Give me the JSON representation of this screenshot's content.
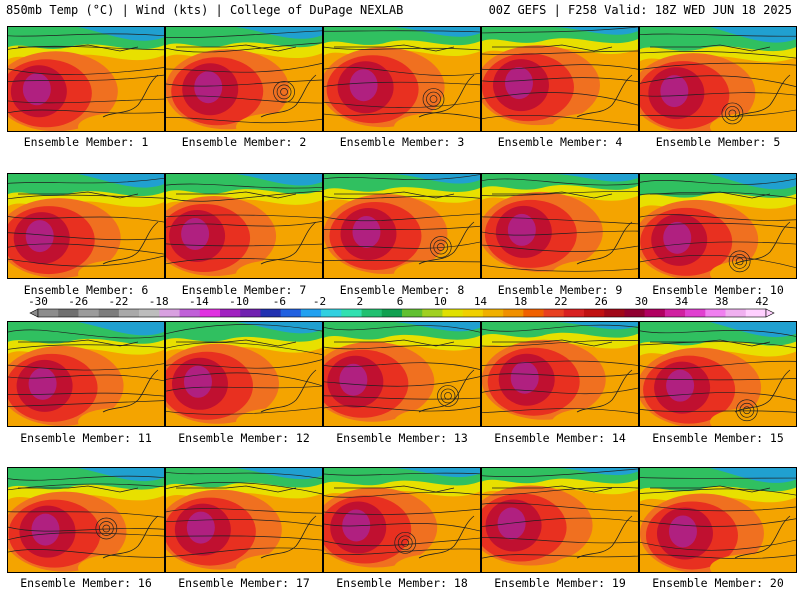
{
  "header": {
    "left": "850mb Temp (°C) | Wind (kts) | College of DuPage NEXLAB",
    "right": "00Z GEFS | F258 Valid: 18Z WED JUN 18 2025"
  },
  "member_caption_prefix": "Ensemble Member:",
  "members": [
    1,
    2,
    3,
    4,
    5,
    6,
    7,
    8,
    9,
    10,
    11,
    12,
    13,
    14,
    15,
    16,
    17,
    18,
    19,
    20
  ],
  "colorbar": {
    "labels": [
      "-30",
      "-26",
      "-22",
      "-18",
      "-14",
      "-10",
      "-6",
      "-2",
      "2",
      "6",
      "10",
      "14",
      "18",
      "22",
      "26",
      "30",
      "34",
      "38",
      "42"
    ],
    "colors": [
      "#8c8c8c",
      "#707070",
      "#9b9b9b",
      "#7d7d7d",
      "#a9a9a9",
      "#bdbdbd",
      "#d8a0e0",
      "#c060d8",
      "#e030e0",
      "#a020c0",
      "#7020b0",
      "#2030b0",
      "#2060e0",
      "#20a0f0",
      "#30d0e0",
      "#30e0b0",
      "#20c070",
      "#10a050",
      "#60c030",
      "#a0d020",
      "#e0e000",
      "#f0d000",
      "#f0b000",
      "#f09000",
      "#f06000",
      "#e84020",
      "#d82020",
      "#c01010",
      "#a00818",
      "#900030",
      "#b00060",
      "#d020a0",
      "#e040d0",
      "#f080f0",
      "#f0b0f0",
      "#ffd0ff"
    ]
  },
  "map_style": {
    "hot_core": "#c01030",
    "hot": "#e83020",
    "warm": "#f07020",
    "mild": "#f4a400",
    "cool": "#e8e000",
    "cold": "#30c060",
    "colder": "#20a0d0",
    "core_purple": "#b02080",
    "contour": "#202020"
  }
}
